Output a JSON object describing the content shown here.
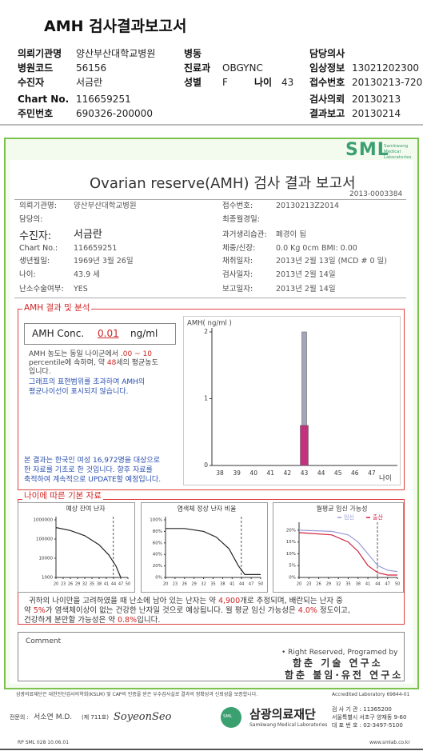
{
  "header": {
    "title": "AMH 검사결과보고서",
    "left": [
      {
        "label": "의뢰기관명",
        "value": "양산부산대학교병원"
      },
      {
        "label": "병원코드",
        "value": "56156"
      },
      {
        "label": "수진자",
        "value": "서금란"
      },
      {
        "label": "Chart No.",
        "value": "116659251"
      },
      {
        "label": "주민번호",
        "value": "690326-200000"
      }
    ],
    "middle": [
      {
        "label": "병동"
      },
      {
        "label": "진료과",
        "value": "OBGYNC"
      },
      {
        "label": "성별",
        "value": "F"
      }
    ],
    "age": {
      "label": "나이",
      "value": "43"
    },
    "right": [
      {
        "label": "담당의사"
      },
      {
        "label": "임상정보",
        "value": "13021202300"
      },
      {
        "label": "접수번호",
        "value": "20130213-7201"
      },
      {
        "label": "검사의뢰",
        "value": "20130213"
      },
      {
        "label": "결과보고",
        "value": "20130214"
      }
    ]
  },
  "report": {
    "logo": "SML",
    "logo_sub": [
      "Samkwang",
      "Medical",
      "Laboratories"
    ],
    "title": "Ovarian reserve(AMH) 검사 결과 보고서",
    "number": "2013-0003384",
    "left": [
      {
        "label": "의뢰기관명:",
        "value": "양산부산대학교병원"
      },
      {
        "label": "담당의:"
      },
      {
        "label": "수진자:",
        "value": "서금란"
      },
      {
        "label": "Chart No.:",
        "value": "116659251"
      },
      {
        "label": "생년월일:",
        "value": "1969년 3월 26일"
      },
      {
        "label": "나이:",
        "value": "43.9 세"
      },
      {
        "label": "난소수술여부:",
        "value": "YES"
      }
    ],
    "right": [
      {
        "label": "접수번호:",
        "value": "20130213Z2014"
      },
      {
        "label": "최종월경일:"
      },
      {
        "label": "과거생리습관:",
        "value": "폐경이 됨"
      },
      {
        "label": "체중/신장:",
        "value": "0.0 Kg      0cm     BMI:  0.00"
      },
      {
        "label": "채취일자:",
        "value": "2013년 2월 13일    (MCD #  0 일)"
      },
      {
        "label": "검사일자:",
        "value": "2013년 2월 14일"
      },
      {
        "label": "보고일자:",
        "value": "2013년 2월 14일"
      }
    ],
    "amh_section": "AMH 결과 및 분석",
    "conc_label": "AMH Conc.",
    "conc_value": "0.01",
    "conc_unit": "ng/ml",
    "analysis": [
      [
        {
          "text": "AMH 농도는 동일 나이군에서 "
        },
        {
          "text": ".00 ~ 10",
          "highlight": true
        }
      ],
      [
        {
          "text": "percentile에 속하며, 약 "
        },
        {
          "text": "48",
          "highlight": true
        },
        {
          "text": "세의 평균농도"
        }
      ],
      [
        {
          "text": "입니다."
        }
      ]
    ],
    "note": [
      "그래프의 표현범위를 초과하여 AMH의",
      "평균나이선이 표시되지 않습니다."
    ],
    "source": [
      "본 결과는 한국인 여성 16,972명을 대상으로",
      "한 자료를 기초로 한 것입니다. 향후 자료를",
      "축적하여 계속적으로 UPDATE할 예정입니다."
    ],
    "age_section": "나이에 따른 기본 자료",
    "summary": [
      [
        {
          "text": "귀하의 나이만을 고려하였을 때 난소에 남아 있는 난자는 약 "
        },
        {
          "text": "4,900",
          "highlight": true
        },
        {
          "text": "개로 추정되며, 배란되는 난자 중"
        }
      ],
      [
        {
          "text": "약 "
        },
        {
          "text": "5%",
          "highlight": true
        },
        {
          "text": "가 염색체이상이 없는 건강한 난자일 것으로 예상됩니다. 월 평균 임신 가능성은 "
        },
        {
          "text": "4.0%",
          "highlight": true
        },
        {
          "text": " 정도이고,"
        }
      ],
      [
        {
          "text": "건강하게 분만할 가능성은 약 "
        },
        {
          "text": "0.8%",
          "highlight": true
        },
        {
          "text": "입니다."
        }
      ]
    ],
    "comment": "Comment",
    "rights": "• Right Reserved, Programed by",
    "lab1": "함춘 기술 연구소",
    "lab2": "함춘 불임·유전 연구소"
  },
  "amh_chart": {
    "type": "bar",
    "y_label": "AMH( ng/ml )",
    "x_label": "나이",
    "categories": [
      38,
      39,
      40,
      41,
      42,
      43,
      44,
      45,
      46,
      47
    ],
    "ylim": [
      0,
      2
    ],
    "yticks": [
      0,
      1,
      2
    ],
    "series": [
      {
        "color": "#a3a6b8",
        "values": [
          null,
          null,
          null,
          null,
          null,
          2,
          null,
          null,
          null,
          null
        ]
      },
      {
        "color": "#c2327d",
        "values": [
          null,
          null,
          null,
          null,
          null,
          0.6,
          null,
          null,
          null,
          null
        ]
      }
    ]
  },
  "age_charts": [
    {
      "type": "line",
      "title": "예상 잔여 난자",
      "log": true,
      "xlim": [
        20,
        50
      ],
      "xticks": [
        20,
        23,
        26,
        29,
        32,
        35,
        38,
        41,
        44,
        47,
        50
      ],
      "ylim": [
        1000,
        1000000
      ],
      "yticks": [
        1000,
        10000,
        100000,
        1000000
      ],
      "marker_x": 43.9,
      "series": [
        {
          "color": "#222222",
          "x": [
            20,
            26,
            32,
            38,
            42,
            45,
            47
          ],
          "values": [
            400000,
            280000,
            150000,
            50000,
            15000,
            4000,
            1000
          ]
        }
      ]
    },
    {
      "type": "line",
      "title": "염색체 정상 난자 비율",
      "log": false,
      "xlim": [
        20,
        50
      ],
      "xticks": [
        20,
        23,
        26,
        29,
        32,
        35,
        38,
        41,
        44,
        47,
        50
      ],
      "ylim": [
        0,
        100
      ],
      "yticks": [
        {
          "value": 0,
          "label": "0%"
        },
        {
          "value": 20,
          "label": "20%"
        },
        {
          "value": 40,
          "label": "40%"
        },
        {
          "value": 60,
          "label": "60%"
        },
        {
          "value": 80,
          "label": "80%"
        },
        {
          "value": 100,
          "label": "100%"
        }
      ],
      "marker_x": 43.9,
      "series": [
        {
          "color": "#222222",
          "x": [
            20,
            26,
            32,
            36,
            40,
            43,
            45,
            50
          ],
          "values": [
            85,
            85,
            80,
            70,
            50,
            20,
            5,
            5
          ]
        }
      ]
    },
    {
      "type": "line",
      "title": "월평균 임신 가능성",
      "log": false,
      "xlim": [
        20,
        50
      ],
      "xticks": [
        20,
        23,
        26,
        29,
        32,
        35,
        38,
        41,
        44,
        47,
        50
      ],
      "ylim": [
        0,
        22
      ],
      "yticks": [
        {
          "value": 0,
          "label": "0%"
        },
        {
          "value": 5,
          "label": "5%"
        },
        {
          "value": 10,
          "label": "10%"
        },
        {
          "value": 15,
          "label": "15%"
        },
        {
          "value": 20,
          "label": "20%"
        }
      ],
      "marker_x": 43.9,
      "series": [
        {
          "name": "임신",
          "color": "#9a9ad8",
          "x": [
            20,
            30,
            35,
            38,
            41,
            44,
            47,
            50
          ],
          "values": [
            20,
            19.5,
            18,
            15,
            10,
            5,
            3,
            2.5
          ]
        },
        {
          "name": "출산",
          "color": "#d02040",
          "x": [
            20,
            30,
            35,
            38,
            41,
            44,
            47,
            50
          ],
          "values": [
            19,
            18,
            15,
            11,
            5,
            2,
            1,
            1
          ]
        }
      ]
    }
  ],
  "footer": {
    "accredit": "삼광의료재단은 대한진단검사의학회(KSLM) 및 CAP의 인증을 받은 우수검사실로 결과의 정확성과 신뢰성을 보증합니다.",
    "accredit_no": "Accredited Laboratory  69844-01",
    "doctor_label": "전문의 :",
    "doctor": "서소연 M.D.",
    "license": "(제 711호)",
    "signature": "SoyeonSeo",
    "brand_logo": "SML",
    "brand": "삼광의료재단",
    "brand_en": "Samkwang Medical Laboratories",
    "info": [
      "검 사 기 관 : 11365200",
      "서울특별시 서초구 양재동 9-60",
      "대 표 번 호 : 02-3497-5100"
    ],
    "form": "RP  SML  028  10.06.01",
    "web": "www.smlab.co.kr"
  }
}
